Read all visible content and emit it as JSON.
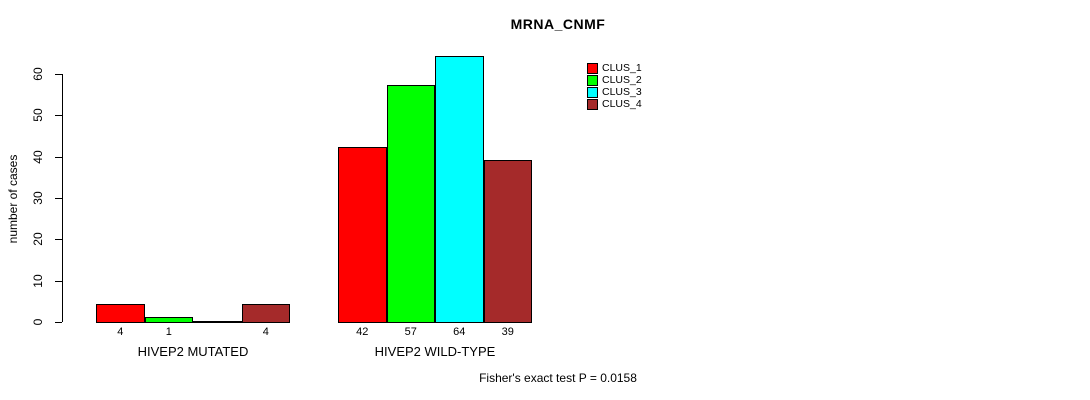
{
  "chart_data": {
    "type": "bar",
    "title": "MRNA_CNMF",
    "ylabel": "number of cases",
    "xlabel": "",
    "ylim": [
      0,
      60
    ],
    "yticks": [
      0,
      10,
      20,
      30,
      40,
      50,
      60
    ],
    "grid": false,
    "legend": {
      "position": "top-right",
      "entries": [
        {
          "name": "CLUS_1",
          "color": "#FF0000"
        },
        {
          "name": "CLUS_2",
          "color": "#00FF00"
        },
        {
          "name": "CLUS_3",
          "color": "#00FFFF"
        },
        {
          "name": "CLUS_4",
          "color": "#A52A2A"
        }
      ]
    },
    "series_colors": [
      "#FF0000",
      "#00FF00",
      "#00FFFF",
      "#A52A2A"
    ],
    "groups": [
      {
        "label": "HIVEP2 MUTATED",
        "series": [
          "CLUS_1",
          "CLUS_2",
          "CLUS_3",
          "CLUS_4"
        ],
        "values": [
          4,
          1,
          0,
          4
        ],
        "value_labels": [
          "4",
          "1",
          "",
          "4"
        ]
      },
      {
        "label": "HIVEP2 WILD-TYPE",
        "series": [
          "CLUS_1",
          "CLUS_2",
          "CLUS_3",
          "CLUS_4"
        ],
        "values": [
          42,
          57,
          64,
          39
        ],
        "value_labels": [
          "42",
          "57",
          "64",
          "39"
        ]
      }
    ],
    "annotation": "Fisher's exact test P = 0.0158",
    "colors": {
      "background": "#FFFFFF",
      "axis": "#000000",
      "text": "#000000"
    }
  }
}
